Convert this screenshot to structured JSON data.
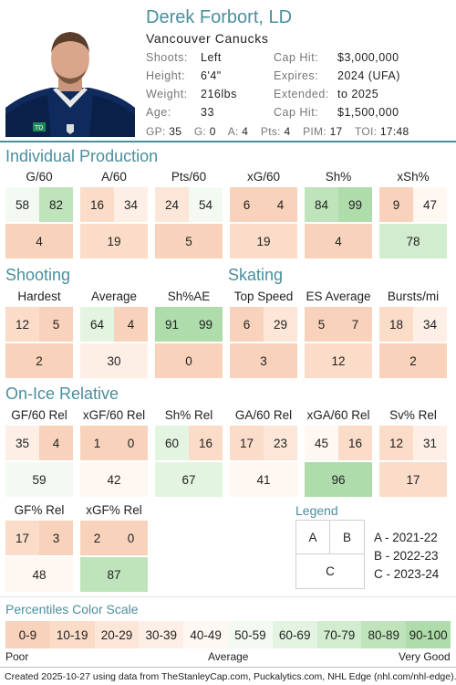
{
  "player": {
    "name": "Derek Forbort, LD",
    "team": "Vancouver Canucks"
  },
  "info_left": [
    {
      "label": "Shoots:",
      "value": "Left"
    },
    {
      "label": "Height:",
      "value": "6'4\""
    },
    {
      "label": "Weight:",
      "value": "216lbs"
    },
    {
      "label": "Age:",
      "value": "33"
    }
  ],
  "info_right": [
    {
      "label": "Cap Hit:",
      "value": "$3,000,000"
    },
    {
      "label": "Expires:",
      "value": "2024 (UFA)"
    },
    {
      "label": "Extended:",
      "value": "to 2025"
    },
    {
      "label": "Cap Hit:",
      "value": "$1,500,000"
    }
  ],
  "stats_line": [
    {
      "label": "GP:",
      "value": "35"
    },
    {
      "label": "G:",
      "value": "0"
    },
    {
      "label": "A:",
      "value": "4"
    },
    {
      "label": "Pts:",
      "value": "4"
    },
    {
      "label": "PIM:",
      "value": "17"
    },
    {
      "label": "TOI:",
      "value": "17:48"
    }
  ],
  "sections": [
    {
      "title": "Individual Production",
      "groups": [
        {
          "label": "G/60",
          "a": 58,
          "b": 82,
          "c": 4
        },
        {
          "label": "A/60",
          "a": 16,
          "b": 34,
          "c": 19
        },
        {
          "label": "Pts/60",
          "a": 24,
          "b": 54,
          "c": 5
        },
        {
          "label": "xG/60",
          "a": 6,
          "b": 4,
          "c": 19
        },
        {
          "label": "Sh%",
          "a": 84,
          "b": 99,
          "c": 4
        },
        {
          "label": "xSh%",
          "a": 9,
          "b": 47,
          "c": 78
        }
      ]
    },
    {
      "title": "Shooting",
      "groups": [
        {
          "label": "Hardest",
          "a": 12,
          "b": 5,
          "c": 2
        },
        {
          "label": "Average",
          "a": 64,
          "b": 4,
          "c": 30
        },
        {
          "label": "Sh%AE",
          "a": 91,
          "b": 99,
          "c": 0
        }
      ]
    },
    {
      "title": "Skating",
      "groups": [
        {
          "label": "Top Speed",
          "a": 6,
          "b": 29,
          "c": 3
        },
        {
          "label": "ES Average",
          "a": 5,
          "b": 7,
          "c": 12
        },
        {
          "label": "Bursts/mi",
          "a": 18,
          "b": 34,
          "c": 2
        }
      ]
    },
    {
      "title": "On-Ice Relative",
      "groups": [
        {
          "label": "GF/60 Rel",
          "a": 35,
          "b": 4,
          "c": 59
        },
        {
          "label": "xGF/60 Rel",
          "a": 1,
          "b": 0,
          "c": 42
        },
        {
          "label": "Sh% Rel",
          "a": 60,
          "b": 16,
          "c": 67
        },
        {
          "label": "GA/60 Rel",
          "a": 17,
          "b": 23,
          "c": 41
        },
        {
          "label": "xGA/60 Rel",
          "a": 45,
          "b": 16,
          "c": 96
        },
        {
          "label": "Sv% Rel",
          "a": 12,
          "b": 31,
          "c": 17
        },
        {
          "label": "GF% Rel",
          "a": 17,
          "b": 3,
          "c": 48
        },
        {
          "label": "xGF% Rel",
          "a": 2,
          "b": 0,
          "c": 87
        }
      ]
    }
  ],
  "legend": {
    "title": "Legend",
    "box": [
      "A",
      "B",
      "C"
    ],
    "entries": [
      "A - 2021-22",
      "B - 2022-23",
      "C - 2023-24"
    ]
  },
  "color_scale": {
    "title": "Percentiles Color Scale",
    "bins": [
      "0-9",
      "10-19",
      "20-29",
      "30-39",
      "40-49",
      "50-59",
      "60-69",
      "70-79",
      "80-89",
      "90-100"
    ],
    "colors": [
      "#f8d2ba",
      "#fadcc8",
      "#fce6d8",
      "#fdefe6",
      "#fff7f1",
      "#f3faf2",
      "#e3f4e1",
      "#d1ecce",
      "#bfe4bb",
      "#aedcab"
    ],
    "low_label": "Poor",
    "mid_label": "Average",
    "high_label": "Very Good"
  },
  "footer": "Created 2025-10-27 using data from TheStanleyCap.com, Puckalytics.com, NHL Edge (nhl.com/nhl-edge)."
}
